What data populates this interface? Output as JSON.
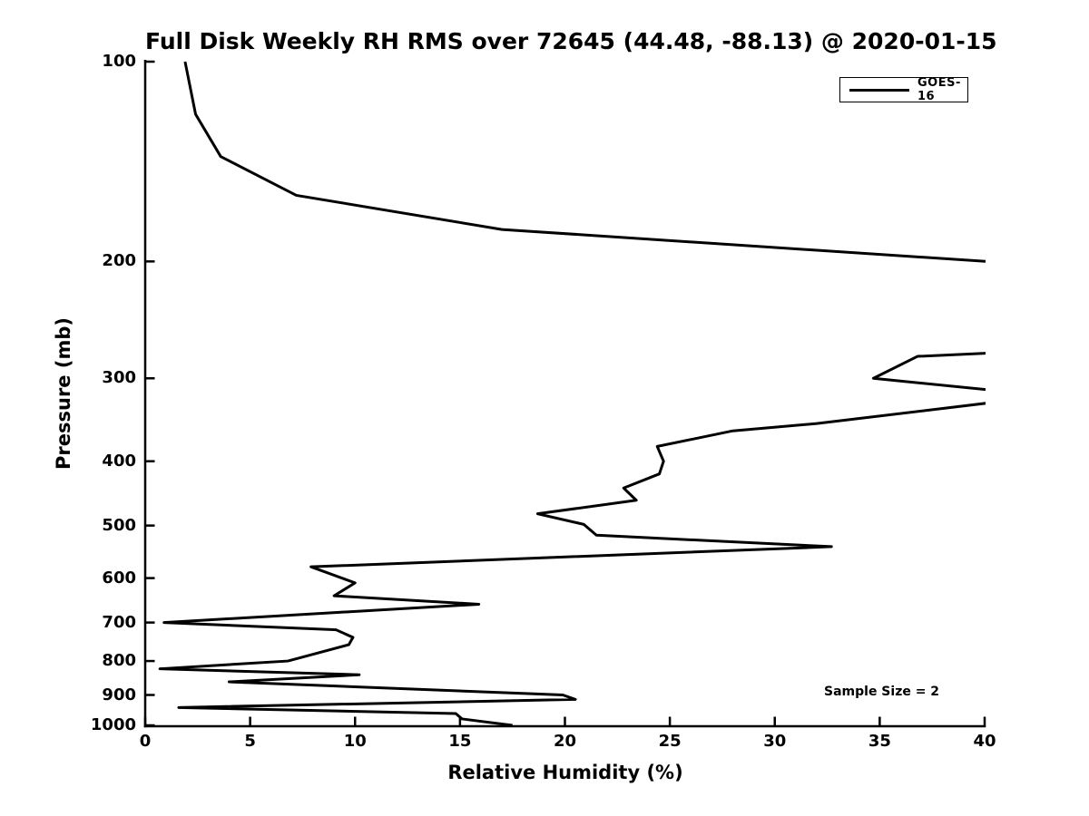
{
  "chart_data": {
    "type": "line",
    "title": "Full Disk Weekly RH RMS over 72645 (44.48, -88.13) @ 2020-01-15",
    "xlabel": "Relative Humidity (%)",
    "ylabel": "Pressure (mb)",
    "xlim": [
      0,
      40
    ],
    "ylim": [
      100,
      1000
    ],
    "yscale": "log",
    "y_inverted": true,
    "grid": false,
    "xticks": [
      0,
      5,
      10,
      15,
      20,
      25,
      30,
      35,
      40
    ],
    "yticks": [
      100,
      200,
      300,
      400,
      500,
      600,
      700,
      800,
      900,
      1000
    ],
    "legend": {
      "position": "top-right",
      "entries": [
        "GOES-16"
      ]
    },
    "annotation": {
      "text": "Sample Size = 2"
    },
    "line_color": "#000000",
    "background_color": "#ffffff",
    "series": [
      {
        "name": "GOES-16",
        "color": "#000000",
        "x_units": "percent_rh",
        "y_units": "pressure_mb",
        "clip_note": "profile exceeds 40% RH between segments; line is clipped at right axis limit",
        "segments": [
          [
            [
              1.9,
              100
            ],
            [
              2.4,
              120
            ],
            [
              3.6,
              139
            ],
            [
              7.2,
              159
            ],
            [
              17.0,
              179
            ],
            [
              40.1,
              200
            ]
          ],
          [
            [
              40.1,
              275
            ],
            [
              36.8,
              278
            ],
            [
              34.7,
              300
            ],
            [
              40.1,
              312
            ]
          ],
          [
            [
              40.1,
              327
            ],
            [
              32.0,
              351
            ],
            [
              28.0,
              360
            ],
            [
              24.4,
              380
            ],
            [
              24.7,
              400
            ],
            [
              24.5,
              418
            ],
            [
              22.8,
              439
            ],
            [
              23.4,
              458
            ],
            [
              18.7,
              480
            ],
            [
              20.9,
              498
            ],
            [
              21.5,
              517
            ],
            [
              32.7,
              538
            ],
            [
              7.9,
              577
            ],
            [
              10.0,
              610
            ],
            [
              9.0,
              638
            ],
            [
              15.9,
              657
            ],
            [
              0.9,
              700
            ],
            [
              9.1,
              718
            ],
            [
              9.9,
              737
            ],
            [
              9.7,
              756
            ],
            [
              6.8,
              800
            ],
            [
              0.7,
              822
            ],
            [
              10.2,
              839
            ],
            [
              4.0,
              860
            ],
            [
              19.9,
              900
            ],
            [
              20.5,
              914
            ],
            [
              1.6,
              940
            ],
            [
              14.8,
              960
            ],
            [
              15.1,
              978
            ],
            [
              17.5,
              1000
            ]
          ]
        ]
      }
    ]
  }
}
